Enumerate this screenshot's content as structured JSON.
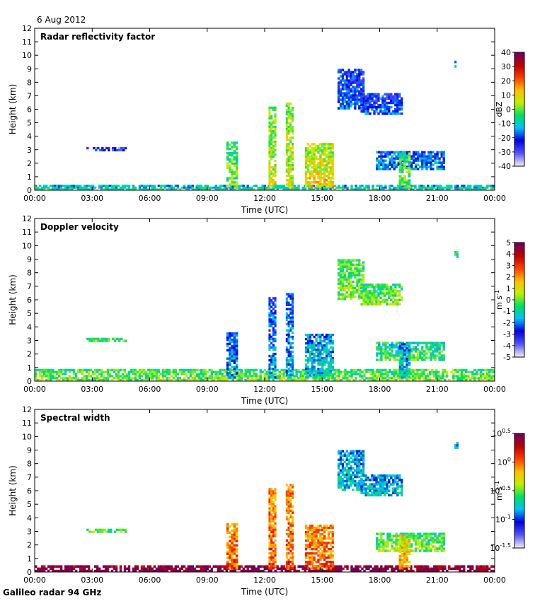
{
  "header": {
    "date": "6 Aug 2012"
  },
  "footer": {
    "label": "Galileo radar 94 GHz"
  },
  "chart_data": [
    {
      "type": "heatmap",
      "title": "Radar reflectivity factor",
      "xlabel": "Time (UTC)",
      "ylabel": "Height (km)",
      "xticks": [
        "00:00",
        "03:00",
        "06:00",
        "09:00",
        "12:00",
        "15:00",
        "18:00",
        "21:00",
        "00:00"
      ],
      "xlim": [
        0,
        24
      ],
      "ylim": [
        0,
        12
      ],
      "yticks": [
        0,
        1,
        2,
        3,
        4,
        5,
        6,
        7,
        8,
        9,
        10,
        11,
        12
      ],
      "colorbar": {
        "unit": "dBZ",
        "ticks": [
          "40",
          "30",
          "20",
          "10",
          "0",
          "-10",
          "-20",
          "-30",
          "-40"
        ],
        "colors": [
          "#e6e6f0",
          "#5050ff",
          "#0000e0",
          "#00c0ff",
          "#00e060",
          "#c0f000",
          "#ffc000",
          "#ff4000",
          "#c00000",
          "#700060"
        ]
      },
      "features": [
        {
          "t": [
            0.0,
            24.0
          ],
          "h": [
            0.0,
            0.4
          ],
          "level": 0.35
        },
        {
          "t": [
            2.7,
            4.8
          ],
          "h": [
            2.9,
            3.2
          ],
          "level": 0.15
        },
        {
          "t": [
            10.0,
            10.6
          ],
          "h": [
            0.2,
            3.6
          ],
          "level": 0.45
        },
        {
          "t": [
            12.2,
            12.6
          ],
          "h": [
            0.2,
            6.2
          ],
          "level": 0.5
        },
        {
          "t": [
            13.1,
            13.5
          ],
          "h": [
            0.2,
            6.5
          ],
          "level": 0.5
        },
        {
          "t": [
            14.1,
            15.6
          ],
          "h": [
            0.2,
            3.5
          ],
          "level": 0.55
        },
        {
          "t": [
            15.8,
            17.2
          ],
          "h": [
            6.0,
            9.0
          ],
          "level": 0.2
        },
        {
          "t": [
            17.0,
            19.2
          ],
          "h": [
            5.6,
            7.2
          ],
          "level": 0.2
        },
        {
          "t": [
            17.8,
            21.4
          ],
          "h": [
            1.5,
            2.9
          ],
          "level": 0.25
        },
        {
          "t": [
            19.0,
            19.6
          ],
          "h": [
            0.2,
            2.8
          ],
          "level": 0.45
        },
        {
          "t": [
            21.9,
            22.1
          ],
          "h": [
            9.1,
            9.6
          ],
          "level": 0.2
        }
      ]
    },
    {
      "type": "heatmap",
      "title": "Doppler velocity",
      "xlabel": "Time (UTC)",
      "ylabel": "Height (km)",
      "xticks": [
        "00:00",
        "03:00",
        "06:00",
        "09:00",
        "12:00",
        "15:00",
        "18:00",
        "21:00",
        "00:00"
      ],
      "xlim": [
        0,
        24
      ],
      "ylim": [
        0,
        12
      ],
      "yticks": [
        0,
        1,
        2,
        3,
        4,
        5,
        6,
        7,
        8,
        9,
        10,
        11,
        12
      ],
      "colorbar": {
        "unit": "m s-1",
        "ticks": [
          "5",
          "4",
          "3",
          "2",
          "1",
          "0",
          "-1",
          "-2",
          "-3",
          "-4",
          "-5"
        ],
        "colors": [
          "#e6e6f0",
          "#5050ff",
          "#0000e0",
          "#00c0ff",
          "#00e060",
          "#c0f000",
          "#ffc000",
          "#ff4000",
          "#c00000",
          "#700060"
        ]
      },
      "features": [
        {
          "t": [
            0.0,
            24.0
          ],
          "h": [
            0.0,
            0.9
          ],
          "level": 0.45
        },
        {
          "t": [
            2.7,
            4.8
          ],
          "h": [
            2.9,
            3.2
          ],
          "level": 0.45
        },
        {
          "t": [
            10.0,
            10.6
          ],
          "h": [
            0.2,
            3.6
          ],
          "level": 0.25
        },
        {
          "t": [
            12.2,
            12.6
          ],
          "h": [
            0.2,
            6.2
          ],
          "level": 0.25
        },
        {
          "t": [
            13.1,
            13.5
          ],
          "h": [
            0.2,
            6.5
          ],
          "level": 0.25
        },
        {
          "t": [
            14.1,
            15.6
          ],
          "h": [
            0.2,
            3.5
          ],
          "level": 0.3
        },
        {
          "t": [
            15.8,
            17.2
          ],
          "h": [
            6.0,
            9.0
          ],
          "level": 0.45
        },
        {
          "t": [
            17.0,
            19.2
          ],
          "h": [
            5.6,
            7.2
          ],
          "level": 0.45
        },
        {
          "t": [
            17.8,
            21.4
          ],
          "h": [
            1.5,
            2.9
          ],
          "level": 0.4
        },
        {
          "t": [
            19.0,
            19.6
          ],
          "h": [
            0.2,
            2.8
          ],
          "level": 0.3
        },
        {
          "t": [
            21.9,
            22.1
          ],
          "h": [
            9.1,
            9.6
          ],
          "level": 0.45
        }
      ]
    },
    {
      "type": "heatmap",
      "title": "Spectral width",
      "xlabel": "Time (UTC)",
      "ylabel": "Height (km)",
      "xticks": [
        "00:00",
        "03:00",
        "06:00",
        "09:00",
        "12:00",
        "15:00",
        "18:00",
        "21:00",
        "00:00"
      ],
      "xlim": [
        0,
        24
      ],
      "ylim": [
        0,
        12
      ],
      "yticks": [
        0,
        1,
        2,
        3,
        4,
        5,
        6,
        7,
        8,
        9,
        10,
        11,
        12
      ],
      "colorbar": {
        "unit": "m s-1",
        "ticks": [
          "10^0.5",
          "10^0",
          "10^-0.5",
          "10^-1",
          "10^-1.5"
        ],
        "colors": [
          "#e6e6f0",
          "#5050ff",
          "#0000e0",
          "#00c0ff",
          "#00e060",
          "#c0f000",
          "#ffc000",
          "#ff4000",
          "#c00000",
          "#700060"
        ]
      },
      "features": [
        {
          "t": [
            0.0,
            24.0
          ],
          "h": [
            0.0,
            0.5
          ],
          "level": 0.95
        },
        {
          "t": [
            2.7,
            4.8
          ],
          "h": [
            2.9,
            3.2
          ],
          "level": 0.45
        },
        {
          "t": [
            10.0,
            10.6
          ],
          "h": [
            0.2,
            3.6
          ],
          "level": 0.7
        },
        {
          "t": [
            12.2,
            12.6
          ],
          "h": [
            0.2,
            6.2
          ],
          "level": 0.7
        },
        {
          "t": [
            13.1,
            13.5
          ],
          "h": [
            0.2,
            6.5
          ],
          "level": 0.7
        },
        {
          "t": [
            14.1,
            15.6
          ],
          "h": [
            0.2,
            3.5
          ],
          "level": 0.7
        },
        {
          "t": [
            15.8,
            17.2
          ],
          "h": [
            6.0,
            9.0
          ],
          "level": 0.3
        },
        {
          "t": [
            17.0,
            19.2
          ],
          "h": [
            5.6,
            7.2
          ],
          "level": 0.3
        },
        {
          "t": [
            17.8,
            21.4
          ],
          "h": [
            1.5,
            2.9
          ],
          "level": 0.45
        },
        {
          "t": [
            19.0,
            19.6
          ],
          "h": [
            0.2,
            2.8
          ],
          "level": 0.6
        },
        {
          "t": [
            21.9,
            22.1
          ],
          "h": [
            9.1,
            9.6
          ],
          "level": 0.25
        }
      ]
    }
  ]
}
